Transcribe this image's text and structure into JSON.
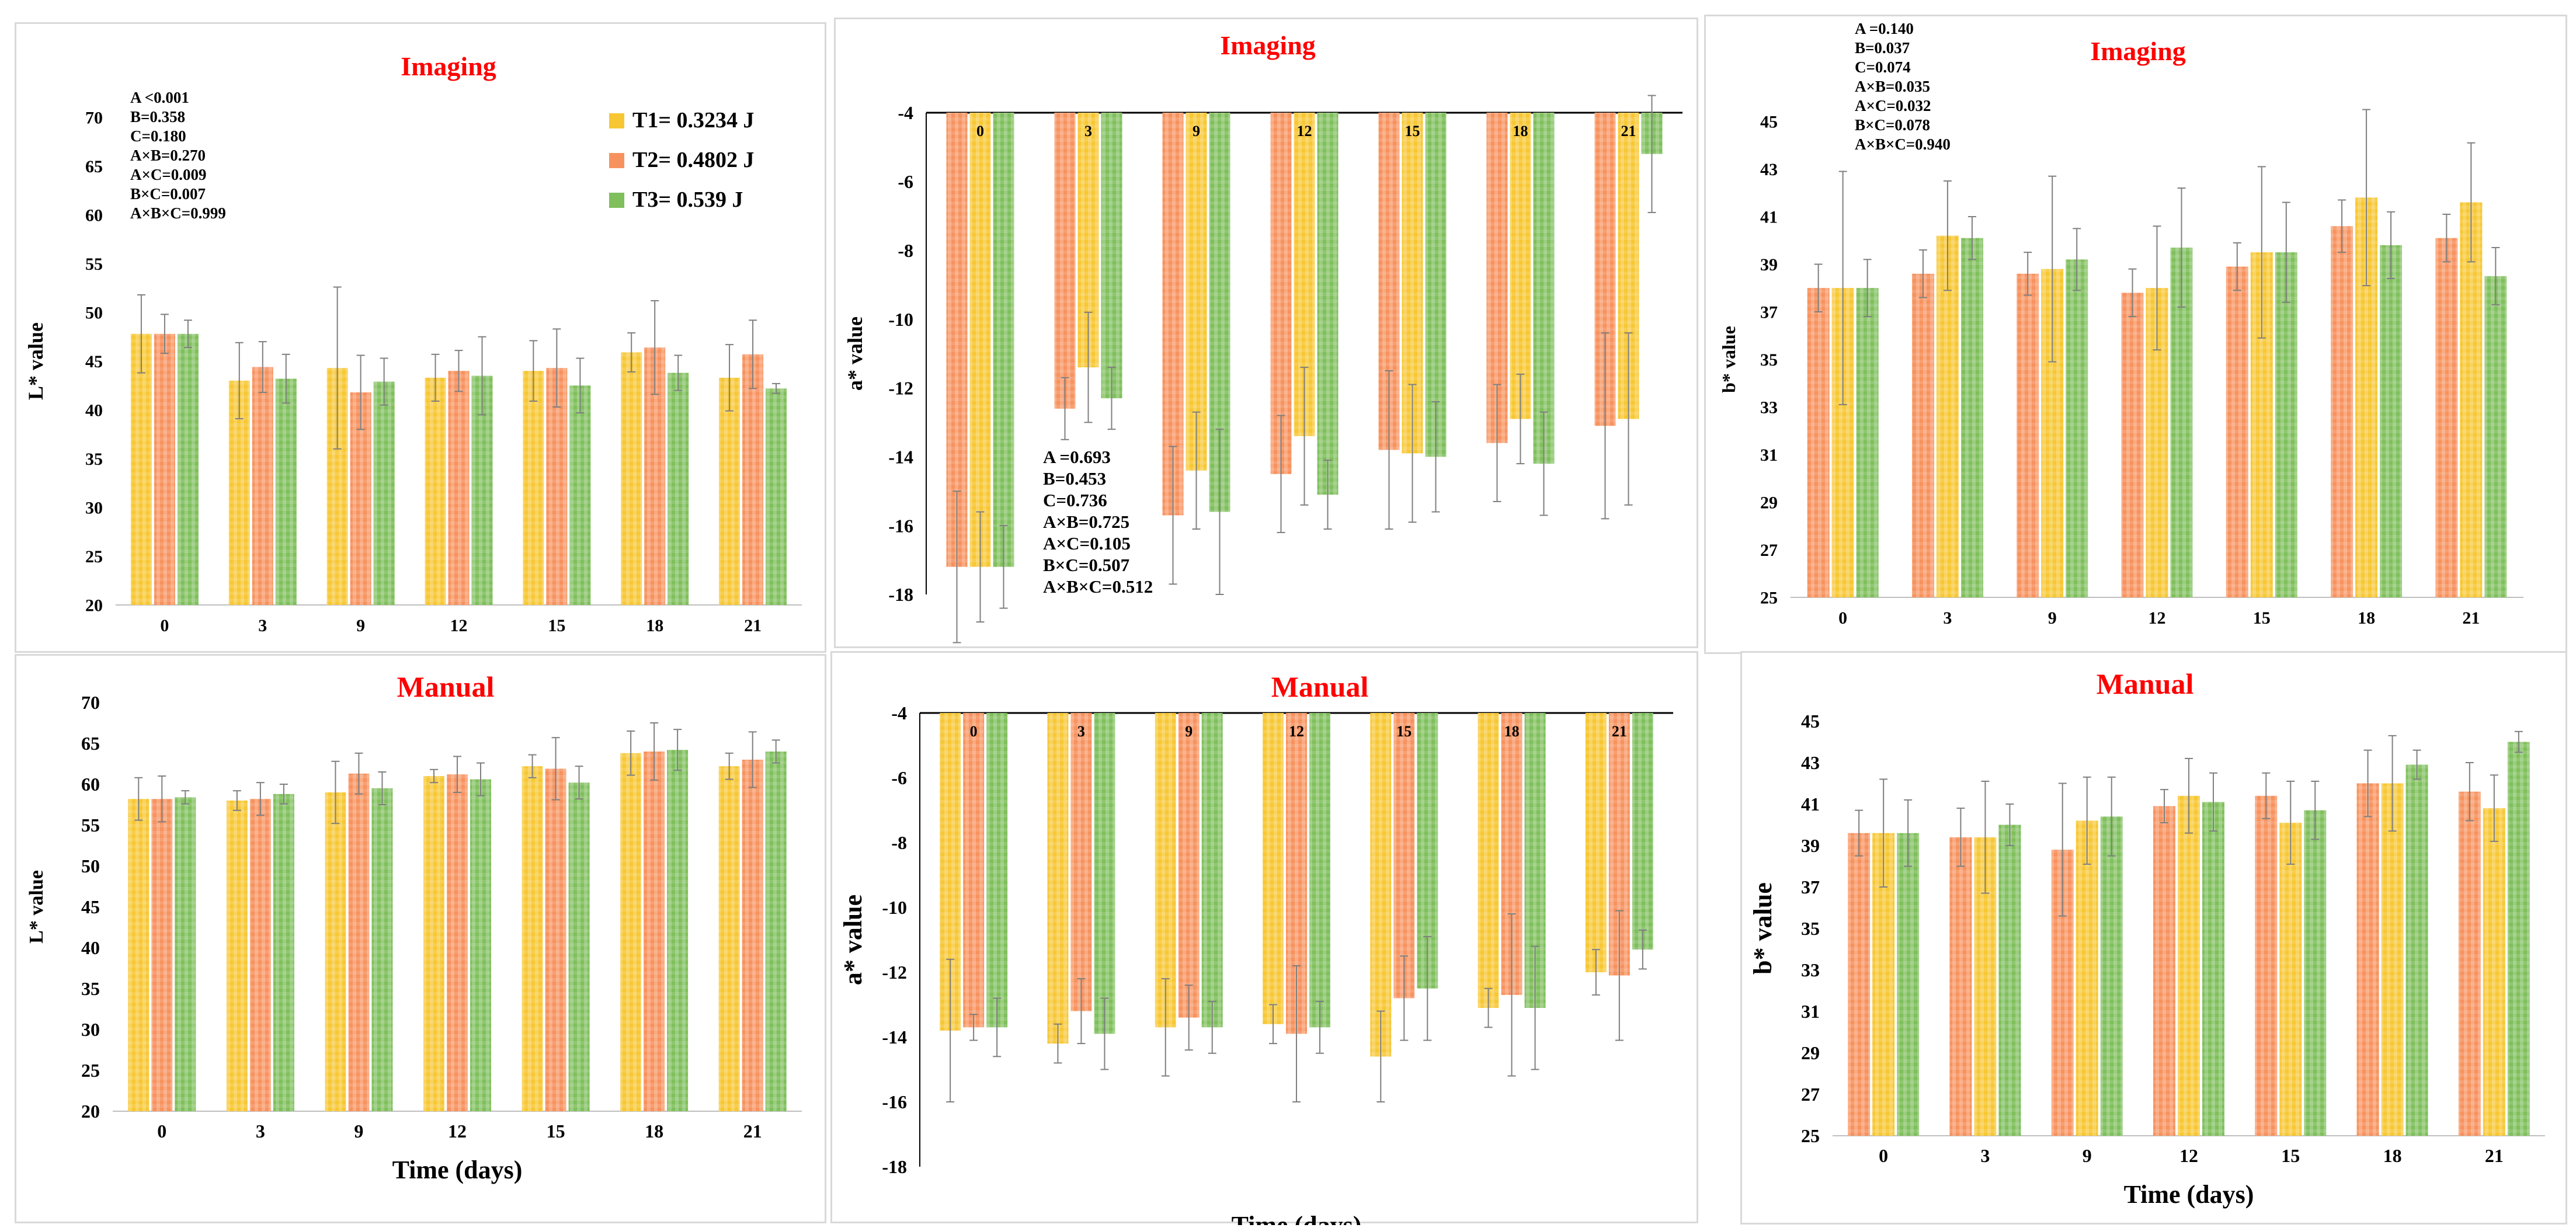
{
  "colors": {
    "T1": "#f7c733",
    "T2": "#f7925e",
    "T3": "#7fbf5c",
    "title": "#ff0000"
  },
  "legend": [
    {
      "key": "T1",
      "label": "T1= 0.3234 J"
    },
    {
      "key": "T2",
      "label": "T2= 0.4802 J"
    },
    {
      "key": "T3",
      "label": "T3= 0.539 J"
    }
  ],
  "chart_data": [
    {
      "id": "imaging-L",
      "type": "bar",
      "title": "Imaging",
      "xlabel": "",
      "ylabel": "L* value",
      "ylim": [
        20,
        70
      ],
      "yticks": [
        20,
        25,
        30,
        35,
        40,
        45,
        50,
        55,
        60,
        65,
        70
      ],
      "categories": [
        "0",
        "3",
        "9",
        "12",
        "15",
        "18",
        "21"
      ],
      "baseline": "bottom",
      "series": [
        {
          "name": "T1",
          "values": [
            47.8,
            43.0,
            44.3,
            43.3,
            44.0,
            45.9,
            43.3
          ],
          "errors": [
            4.0,
            3.9,
            8.3,
            2.4,
            3.1,
            2.0,
            3.4
          ]
        },
        {
          "name": "T2",
          "values": [
            47.8,
            44.4,
            41.8,
            44.0,
            44.3,
            46.4,
            45.7
          ],
          "errors": [
            2.0,
            2.6,
            3.8,
            2.1,
            4.0,
            4.8,
            3.5
          ]
        },
        {
          "name": "T3",
          "values": [
            47.8,
            43.2,
            42.9,
            43.5,
            42.5,
            43.8,
            42.2
          ],
          "errors": [
            1.4,
            2.5,
            2.4,
            4.0,
            2.8,
            1.8,
            0.5
          ]
        }
      ],
      "stats": [
        "A <0.001",
        "B=0.358",
        "C=0.180",
        "A×B=0.270",
        "A×C=0.009",
        "B×C=0.007",
        "A×B×C=0.999"
      ]
    },
    {
      "id": "imaging-a",
      "type": "bar",
      "title": "Imaging",
      "xlabel": "",
      "ylabel": "a* value",
      "ylim": [
        -18,
        -4
      ],
      "yticks": [
        -18,
        -16,
        -14,
        -12,
        -10,
        -8,
        -6,
        -4
      ],
      "categories": [
        "0",
        "3",
        "9",
        "12",
        "15",
        "18",
        "21"
      ],
      "baseline": "top",
      "category_labels_inside": true,
      "series": [
        {
          "name": "T2",
          "values": [
            -17.2,
            -12.6,
            -15.7,
            -14.5,
            -13.8,
            -13.6,
            -13.1
          ],
          "errors": [
            2.2,
            0.9,
            2.0,
            1.7,
            2.3,
            1.7,
            2.7
          ]
        },
        {
          "name": "T1",
          "values": [
            -17.2,
            -11.4,
            -14.4,
            -13.4,
            -13.9,
            -12.9,
            -12.9
          ],
          "errors": [
            1.6,
            1.6,
            1.7,
            2.0,
            2.0,
            1.3,
            2.5
          ]
        },
        {
          "name": "T3",
          "values": [
            -17.2,
            -12.3,
            -15.6,
            -15.1,
            -14.0,
            -14.2,
            -5.2
          ],
          "errors": [
            1.2,
            0.9,
            2.4,
            1.0,
            1.6,
            1.5,
            1.7
          ]
        }
      ],
      "stats": [
        "A =0.693",
        "B=0.453",
        "C=0.736",
        "A×B=0.725",
        "A×C=0.105",
        "B×C=0.507",
        "A×B×C=0.512"
      ]
    },
    {
      "id": "imaging-b",
      "type": "bar",
      "title": "Imaging",
      "xlabel": "",
      "ylabel": "b* value",
      "ylim": [
        25,
        45
      ],
      "yticks": [
        25,
        27,
        29,
        31,
        33,
        35,
        37,
        39,
        41,
        43,
        45
      ],
      "categories": [
        "0",
        "3",
        "9",
        "12",
        "15",
        "18",
        "21"
      ],
      "baseline": "bottom",
      "series": [
        {
          "name": "T2",
          "values": [
            38.0,
            38.6,
            38.6,
            37.8,
            38.9,
            40.6,
            40.1
          ],
          "errors": [
            1.0,
            1.0,
            0.9,
            1.0,
            1.0,
            1.1,
            1.0
          ]
        },
        {
          "name": "T1",
          "values": [
            38.0,
            40.2,
            38.8,
            38.0,
            39.5,
            41.8,
            41.6
          ],
          "errors": [
            4.9,
            2.3,
            3.9,
            2.6,
            3.6,
            3.7,
            2.5
          ]
        },
        {
          "name": "T3",
          "values": [
            38.0,
            40.1,
            39.2,
            39.7,
            39.5,
            39.8,
            38.5
          ],
          "errors": [
            1.2,
            0.9,
            1.3,
            2.5,
            2.1,
            1.4,
            1.2
          ]
        }
      ],
      "stats": [
        "A =0.140",
        "B=0.037",
        "C=0.074",
        "A×B=0.035",
        "A×C=0.032",
        "B×C=0.078",
        "A×B×C=0.940"
      ]
    },
    {
      "id": "manual-L",
      "type": "bar",
      "title": "Manual",
      "xlabel": "Time (days)",
      "ylabel": "L* value",
      "ylim": [
        20,
        70
      ],
      "yticks": [
        20,
        25,
        30,
        35,
        40,
        45,
        50,
        55,
        60,
        65,
        70
      ],
      "categories": [
        "0",
        "3",
        "9",
        "12",
        "15",
        "18",
        "21"
      ],
      "baseline": "bottom",
      "series": [
        {
          "name": "T1",
          "values": [
            58.2,
            58.0,
            59.0,
            61.0,
            62.2,
            63.8,
            62.2
          ],
          "errors": [
            2.6,
            1.2,
            3.8,
            0.8,
            1.4,
            2.7,
            1.6
          ]
        },
        {
          "name": "T2",
          "values": [
            58.2,
            58.2,
            61.3,
            61.2,
            61.9,
            64.0,
            63.0
          ],
          "errors": [
            2.8,
            2.0,
            2.5,
            2.2,
            3.8,
            3.5,
            3.4
          ]
        },
        {
          "name": "T3",
          "values": [
            58.4,
            58.8,
            59.5,
            60.6,
            60.2,
            64.2,
            64.0
          ],
          "errors": [
            0.8,
            1.2,
            2.0,
            2.0,
            2.0,
            2.5,
            1.4
          ]
        }
      ]
    },
    {
      "id": "manual-a",
      "type": "bar",
      "title": "Manual",
      "xlabel": "Time (days)",
      "ylabel": "a* value",
      "ylim": [
        -18,
        -4
      ],
      "yticks": [
        -18,
        -16,
        -14,
        -12,
        -10,
        -8,
        -6,
        -4
      ],
      "categories": [
        "0",
        "3",
        "9",
        "12",
        "15",
        "18",
        "21"
      ],
      "baseline": "top",
      "category_labels_inside": true,
      "series": [
        {
          "name": "T1",
          "values": [
            -13.8,
            -14.2,
            -13.7,
            -13.6,
            -14.6,
            -13.1,
            -12.0
          ],
          "errors": [
            2.2,
            0.6,
            1.5,
            0.6,
            1.4,
            0.6,
            0.7
          ]
        },
        {
          "name": "T2",
          "values": [
            -13.7,
            -13.2,
            -13.4,
            -13.9,
            -12.8,
            -12.7,
            -12.1
          ],
          "errors": [
            0.4,
            1.0,
            1.0,
            2.1,
            1.3,
            2.5,
            2.0
          ]
        },
        {
          "name": "T3",
          "values": [
            -13.7,
            -13.9,
            -13.7,
            -13.7,
            -12.5,
            -13.1,
            -11.3
          ],
          "errors": [
            0.9,
            1.1,
            0.8,
            0.8,
            1.6,
            1.9,
            0.6
          ]
        }
      ]
    },
    {
      "id": "manual-b",
      "type": "bar",
      "title": "Manual",
      "xlabel": "Time (days)",
      "ylabel": "b* value",
      "ylim": [
        25,
        45
      ],
      "yticks": [
        25,
        27,
        29,
        31,
        33,
        35,
        37,
        39,
        41,
        43,
        45
      ],
      "categories": [
        "0",
        "3",
        "9",
        "12",
        "15",
        "18",
        "21"
      ],
      "baseline": "bottom",
      "series": [
        {
          "name": "T2",
          "values": [
            39.6,
            39.4,
            38.8,
            40.9,
            41.4,
            42.0,
            41.6
          ],
          "errors": [
            1.1,
            1.4,
            3.2,
            0.8,
            1.1,
            1.6,
            1.4
          ]
        },
        {
          "name": "T1",
          "values": [
            39.6,
            39.4,
            40.2,
            41.4,
            40.1,
            42.0,
            40.8
          ],
          "errors": [
            2.6,
            2.7,
            2.1,
            1.8,
            2.0,
            2.3,
            1.6
          ]
        },
        {
          "name": "T3",
          "values": [
            39.6,
            40.0,
            40.4,
            41.1,
            40.7,
            42.9,
            44.0
          ],
          "errors": [
            1.6,
            1.0,
            1.9,
            1.4,
            1.4,
            0.7,
            0.5
          ]
        }
      ]
    }
  ]
}
